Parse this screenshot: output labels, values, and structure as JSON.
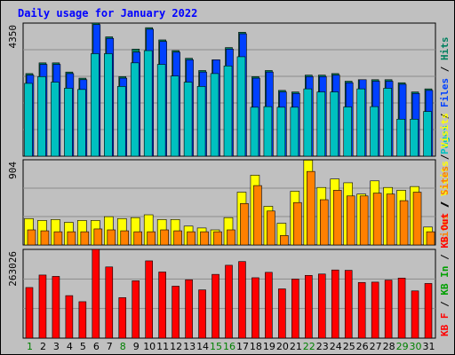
{
  "title": "Daily usage for January 2022",
  "colors": {
    "page": "#00c0c0",
    "file": "#0040ff",
    "hit": "#00805f",
    "visit": "#ffff00",
    "site": "#ff8000",
    "kbin": "#00a000",
    "kbf": "#ff0000",
    "kbout": "#ff0000",
    "day_weekday": "#008000",
    "day_weekend": "#000000"
  },
  "chart_data": [
    {
      "type": "bar",
      "panel": "top",
      "ymax_label": "4350",
      "ylim": [
        0,
        4350
      ],
      "legend_labels": [
        "Pages",
        "Files",
        "Hits"
      ],
      "legend_separator": "/",
      "categories": [
        "1",
        "2",
        "3",
        "4",
        "5",
        "6",
        "7",
        "8",
        "9",
        "10",
        "11",
        "12",
        "13",
        "14",
        "15",
        "16",
        "17",
        "18",
        "19",
        "20",
        "21",
        "22",
        "23",
        "24",
        "25",
        "26",
        "27",
        "28",
        "29",
        "30",
        "31"
      ],
      "series": [
        {
          "name": "Hits",
          "values": [
            2700,
            3050,
            3050,
            2750,
            2550,
            4350,
            3900,
            2600,
            3500,
            4200,
            3800,
            3450,
            3200,
            2800,
            3150,
            3550,
            4050,
            2600,
            2800,
            2150,
            2100,
            2650,
            2650,
            2700,
            2450,
            2500,
            2500,
            2500,
            2400,
            2100,
            2200
          ]
        },
        {
          "name": "Files",
          "values": [
            2650,
            3000,
            3000,
            2700,
            2500,
            4300,
            3850,
            2550,
            3400,
            4150,
            3750,
            3400,
            3150,
            2750,
            3150,
            3500,
            4000,
            2550,
            2750,
            2100,
            2050,
            2600,
            2600,
            2650,
            2400,
            2500,
            2450,
            2450,
            2350,
            2050,
            2150
          ]
        },
        {
          "name": "Pages",
          "values": [
            2380,
            2600,
            2420,
            2220,
            2180,
            3350,
            3350,
            2280,
            3050,
            3450,
            3000,
            2620,
            2420,
            2280,
            2700,
            2950,
            3250,
            1600,
            1620,
            1600,
            1600,
            2200,
            2100,
            2100,
            1610,
            2200,
            1620,
            2220,
            1210,
            1210,
            1460
          ]
        }
      ]
    },
    {
      "type": "bar",
      "panel": "middle",
      "ymax_label": "904",
      "ylim": [
        0,
        904
      ],
      "legend_labels": [
        "Visits",
        "Sites"
      ],
      "legend_separator": "/",
      "categories": [
        "1",
        "2",
        "3",
        "4",
        "5",
        "6",
        "7",
        "8",
        "9",
        "10",
        "11",
        "12",
        "13",
        "14",
        "15",
        "16",
        "17",
        "18",
        "19",
        "20",
        "21",
        "22",
        "23",
        "24",
        "25",
        "26",
        "27",
        "28",
        "29",
        "30",
        "31"
      ],
      "series": [
        {
          "name": "Visits",
          "values": [
            280,
            260,
            270,
            240,
            260,
            260,
            300,
            280,
            290,
            320,
            270,
            270,
            200,
            180,
            160,
            290,
            560,
            740,
            410,
            230,
            570,
            900,
            610,
            700,
            660,
            540,
            680,
            610,
            580,
            620,
            190
          ]
        },
        {
          "name": "Sites",
          "values": [
            160,
            150,
            140,
            140,
            140,
            170,
            160,
            150,
            140,
            140,
            160,
            150,
            140,
            140,
            140,
            160,
            440,
            630,
            360,
            100,
            450,
            780,
            480,
            580,
            520,
            520,
            550,
            540,
            470,
            560,
            140
          ]
        }
      ]
    },
    {
      "type": "bar",
      "panel": "bottom",
      "ymax_label": "263026",
      "ylim": [
        0,
        263026
      ],
      "legend_labels": [
        "KB F",
        "KB In",
        "KB Out",
        "Sites",
        "Visits"
      ],
      "legend_separator": "/",
      "categories": [
        "1",
        "2",
        "3",
        "4",
        "5",
        "6",
        "7",
        "8",
        "9",
        "10",
        "11",
        "12",
        "13",
        "14",
        "15",
        "16",
        "17",
        "18",
        "19",
        "20",
        "21",
        "22",
        "23",
        "24",
        "25",
        "26",
        "27",
        "28",
        "29",
        "30",
        "31"
      ],
      "series": [
        {
          "name": "KB F",
          "values": [
            150000,
            187000,
            183000,
            126000,
            108000,
            263000,
            211000,
            120000,
            170000,
            229000,
            196000,
            154000,
            173000,
            143000,
            189000,
            216000,
            227000,
            179000,
            195000,
            146000,
            175000,
            186000,
            190000,
            202000,
            201000,
            165000,
            166000,
            172000,
            178000,
            140000,
            162000
          ]
        }
      ]
    }
  ],
  "day_labels": [
    "1",
    "2",
    "3",
    "4",
    "5",
    "6",
    "7",
    "8",
    "9",
    "10",
    "11",
    "12",
    "13",
    "14",
    "15",
    "16",
    "17",
    "18",
    "19",
    "20",
    "21",
    "22",
    "23",
    "24",
    "25",
    "26",
    "27",
    "28",
    "29",
    "30",
    "31"
  ],
  "weekend_days": [
    1,
    8,
    15,
    16,
    22,
    29,
    30
  ]
}
